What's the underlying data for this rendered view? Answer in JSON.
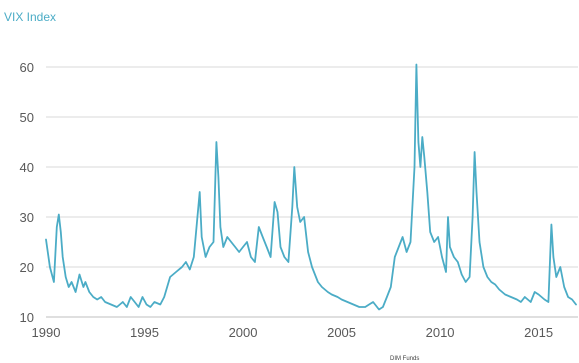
{
  "chart_data": {
    "type": "line",
    "title": "VIX Index",
    "source": "DIM Funds",
    "xlim": [
      1990,
      2017
    ],
    "ylim": [
      10,
      60
    ],
    "grid": true,
    "x_ticks": [
      "1990",
      "1995",
      "2000",
      "2005",
      "2010",
      "2015"
    ],
    "y_ticks": [
      "10",
      "20",
      "30",
      "40",
      "50",
      "60"
    ],
    "colors": {
      "series": "#4bacc6",
      "title": "#4bacc6",
      "grid": "#d9d9d9"
    },
    "series": [
      {
        "x": [
          1990.0,
          1990.2,
          1990.4,
          1990.55,
          1990.65,
          1990.75,
          1990.85,
          1991.0,
          1991.15,
          1991.3,
          1991.5,
          1991.7,
          1991.9,
          1992.0,
          1992.2,
          1992.4,
          1992.6,
          1992.8,
          1993.0,
          1993.3,
          1993.6,
          1993.9,
          1994.1,
          1994.3,
          1994.5,
          1994.7,
          1994.9,
          1995.1,
          1995.3,
          1995.5,
          1995.8,
          1996.0,
          1996.3,
          1996.6,
          1996.9,
          1997.1,
          1997.3,
          1997.5,
          1997.8,
          1997.9,
          1998.1,
          1998.3,
          1998.5,
          1998.65,
          1998.75,
          1998.85,
          1999.0,
          1999.2,
          1999.4,
          1999.6,
          1999.8,
          2000.0,
          2000.2,
          2000.4,
          2000.6,
          2000.8,
          2001.0,
          2001.2,
          2001.4,
          2001.6,
          2001.75,
          2001.9,
          2002.1,
          2002.3,
          2002.5,
          2002.6,
          2002.75,
          2002.9,
          2003.1,
          2003.3,
          2003.5,
          2003.8,
          2004.0,
          2004.3,
          2004.5,
          2004.8,
          2005.0,
          2005.3,
          2005.6,
          2005.9,
          2006.2,
          2006.4,
          2006.6,
          2006.9,
          2007.1,
          2007.3,
          2007.5,
          2007.7,
          2007.9,
          2008.1,
          2008.3,
          2008.5,
          2008.7,
          2008.8,
          2008.9,
          2009.0,
          2009.1,
          2009.2,
          2009.35,
          2009.5,
          2009.7,
          2009.9,
          2010.1,
          2010.3,
          2010.4,
          2010.5,
          2010.7,
          2010.9,
          2011.1,
          2011.3,
          2011.5,
          2011.65,
          2011.75,
          2011.85,
          2012.0,
          2012.2,
          2012.4,
          2012.6,
          2012.8,
          2013.0,
          2013.3,
          2013.6,
          2013.9,
          2014.1,
          2014.3,
          2014.6,
          2014.8,
          2015.0,
          2015.3,
          2015.5,
          2015.65,
          2015.75,
          2015.9,
          2016.1,
          2016.3,
          2016.5,
          2016.7,
          2016.9
        ],
        "values": [
          25.5,
          20.0,
          17.0,
          28.0,
          30.5,
          27.0,
          22.0,
          18.0,
          16.0,
          17.0,
          15.0,
          18.5,
          16.0,
          17.0,
          15.0,
          14.0,
          13.5,
          14.0,
          13.0,
          12.5,
          12.0,
          13.0,
          12.0,
          14.0,
          13.0,
          12.0,
          14.0,
          12.5,
          12.0,
          13.0,
          12.5,
          14.0,
          18.0,
          19.0,
          20.0,
          21.0,
          19.5,
          22.0,
          35.0,
          26.0,
          22.0,
          24.0,
          25.0,
          45.0,
          38.0,
          28.0,
          24.0,
          26.0,
          25.0,
          24.0,
          23.0,
          24.0,
          25.0,
          22.0,
          21.0,
          28.0,
          26.0,
          24.0,
          22.0,
          33.0,
          31.0,
          24.0,
          22.0,
          21.0,
          32.0,
          40.0,
          32.0,
          29.0,
          30.0,
          23.0,
          20.0,
          17.0,
          16.0,
          15.0,
          14.5,
          14.0,
          13.5,
          13.0,
          12.5,
          12.0,
          12.0,
          12.5,
          13.0,
          11.5,
          12.0,
          14.0,
          16.0,
          22.0,
          24.0,
          26.0,
          23.0,
          25.0,
          40.0,
          60.5,
          45.0,
          40.0,
          46.0,
          42.0,
          35.0,
          27.0,
          25.0,
          26.0,
          22.0,
          19.0,
          30.0,
          24.0,
          22.0,
          21.0,
          18.5,
          17.0,
          18.0,
          30.0,
          43.0,
          35.0,
          25.0,
          20.0,
          18.0,
          17.0,
          16.5,
          15.5,
          14.5,
          14.0,
          13.5,
          13.0,
          14.0,
          13.0,
          15.0,
          14.5,
          13.5,
          13.0,
          28.5,
          22.0,
          18.0,
          20.0,
          16.0,
          14.0,
          13.5,
          12.5
        ]
      }
    ]
  }
}
